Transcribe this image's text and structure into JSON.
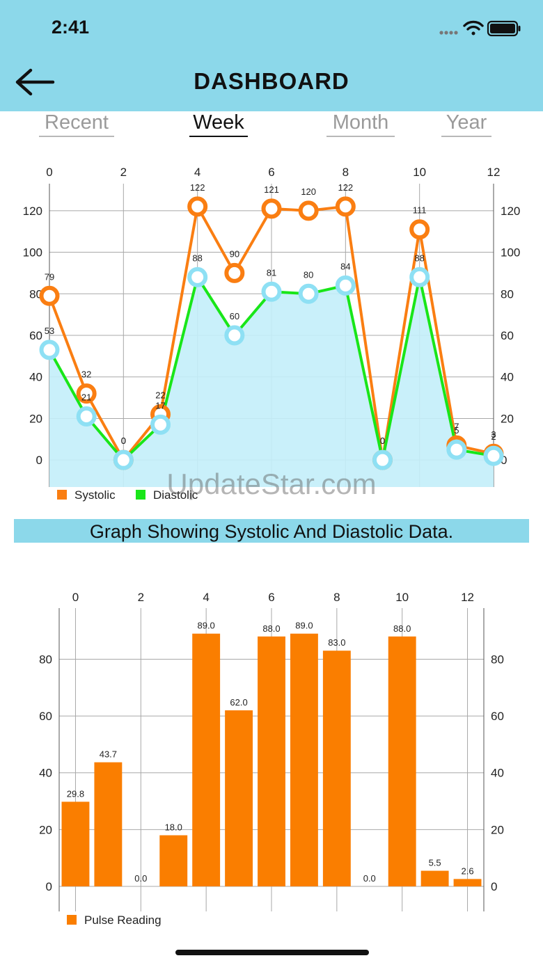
{
  "status_bar": {
    "time": "2:41",
    "signal_icon": "cellular-dots-icon",
    "wifi_icon": "wifi-icon",
    "battery_icon": "battery-icon"
  },
  "header": {
    "title": "DASHBOARD",
    "back_icon": "back-arrow-icon",
    "background": "#8cd8ea"
  },
  "tabs": [
    {
      "label": "Recent",
      "active": false
    },
    {
      "label": "Week",
      "active": true
    },
    {
      "label": "Month",
      "active": false
    },
    {
      "label": "Year",
      "active": false
    }
  ],
  "watermark": "UpdateStar.com",
  "caption": "Graph Showing Systolic And Diastolic Data.",
  "chart_data": [
    {
      "type": "line",
      "x": [
        0,
        1,
        2,
        3,
        4,
        5,
        6,
        7,
        8,
        9,
        10,
        11,
        12
      ],
      "xlim": [
        0,
        12
      ],
      "ylim": [
        -13,
        133
      ],
      "x_ticks": [
        "0",
        "2",
        "4",
        "6",
        "8",
        "10",
        "12"
      ],
      "y_ticks": [
        "0",
        "20",
        "40",
        "60",
        "80",
        "100",
        "120"
      ],
      "grid": true,
      "legend": "bottom-left",
      "series": [
        {
          "name": "Systolic",
          "color": "#fa7e12",
          "values": [
            79,
            32,
            0,
            22,
            122,
            90,
            121,
            120,
            122,
            0,
            111,
            7,
            3
          ]
        },
        {
          "name": "Diastolic",
          "color": "#19e619",
          "values": [
            53,
            21,
            0,
            17,
            88,
            60,
            81,
            80,
            84,
            0,
            88,
            5,
            2
          ],
          "fill": "#c3eefa",
          "marker": "#8ee0f4"
        }
      ]
    },
    {
      "type": "bar",
      "x": [
        0,
        1,
        2,
        3,
        4,
        5,
        6,
        7,
        8,
        9,
        10,
        11,
        12
      ],
      "xlim": [
        -0.5,
        12.5
      ],
      "ylim": [
        0,
        98
      ],
      "x_ticks": [
        "0",
        "2",
        "4",
        "6",
        "8",
        "10",
        "12"
      ],
      "y_ticks": [
        "0",
        "20",
        "40",
        "60",
        "80"
      ],
      "grid": true,
      "legend": "bottom-left",
      "series": [
        {
          "name": "Pulse Reading",
          "color": "#fa7e00",
          "values": [
            29.8,
            43.7,
            0.0,
            18.0,
            89.0,
            62.0,
            88.0,
            89.0,
            83.0,
            0.0,
            88.0,
            5.5,
            2.6
          ],
          "labels": [
            "29.8",
            "43.7",
            "0.0",
            "18.0",
            "89.0",
            "62.0",
            "88.0",
            "89.0",
            "83.0",
            "0.0",
            "88.0",
            "5.5",
            "2.6"
          ]
        }
      ]
    }
  ]
}
